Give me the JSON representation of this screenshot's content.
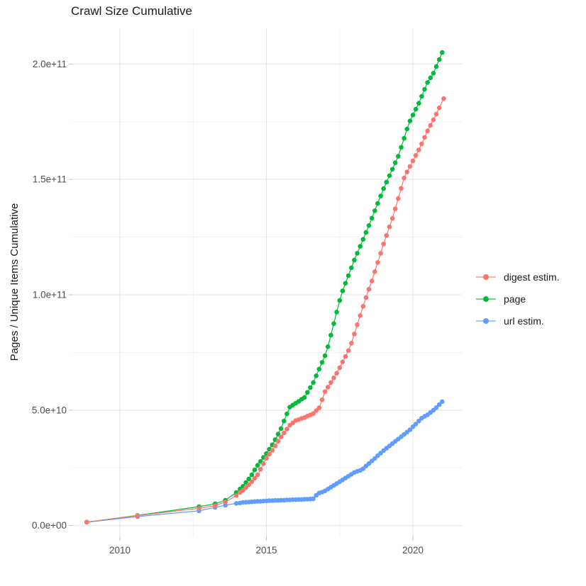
{
  "title": "Crawl Size Cumulative",
  "chart_data": {
    "type": "scatter",
    "title": "Crawl Size Cumulative",
    "xlabel": "",
    "ylabel": "Pages / Unique Items Cumulative",
    "values_unit": "1e9 (value 205 means 2.05e+11)",
    "x_axis": {
      "tick_values": [
        2010,
        2015,
        2020
      ],
      "tick_labels": [
        "2010",
        "2015",
        "2020"
      ],
      "minor_values": [
        2012.5,
        2017.5
      ],
      "range": [
        2008.4,
        2021.67
      ]
    },
    "y_axis": {
      "tick_values": [
        0,
        50,
        100,
        150,
        200
      ],
      "tick_labels": [
        "0.0e+00",
        "5.0e+10",
        "1.0e+11",
        "1.5e+11",
        "2.0e+11"
      ],
      "minor_values": [
        25,
        75,
        125,
        175
      ],
      "range": [
        -8.8,
        215.2
      ]
    },
    "grid": "on",
    "legend_position": "right",
    "colors": {
      "major_grid": "#e4e4e4",
      "minor_grid": "#f1f1f1",
      "tick": "#c6c6c6",
      "axis_text": "#4d4d4d"
    },
    "series": [
      {
        "name": "digest estim.",
        "color": "#F8766D",
        "points": [
          [
            2008.87,
            1.5
          ],
          [
            2010.6,
            4.3
          ],
          [
            2012.7,
            7.5
          ],
          [
            2013.25,
            8.6
          ],
          [
            2013.6,
            10.2
          ],
          [
            2013.97,
            13.0
          ],
          [
            2014.1,
            14.3
          ],
          [
            2014.2,
            15.3
          ],
          [
            2014.3,
            16.5
          ],
          [
            2014.4,
            17.7
          ],
          [
            2014.5,
            19.0
          ],
          [
            2014.6,
            20.5
          ],
          [
            2014.7,
            22.0
          ],
          [
            2014.8,
            24.4
          ],
          [
            2014.9,
            26.8
          ],
          [
            2015.0,
            29.2
          ],
          [
            2015.1,
            30.9
          ],
          [
            2015.2,
            32.6
          ],
          [
            2015.3,
            34.5
          ],
          [
            2015.4,
            36.5
          ],
          [
            2015.5,
            38.4
          ],
          [
            2015.6,
            40.1
          ],
          [
            2015.7,
            41.8
          ],
          [
            2015.8,
            43.5
          ],
          [
            2015.9,
            44.5
          ],
          [
            2016.0,
            45.5
          ],
          [
            2016.1,
            45.9
          ],
          [
            2016.2,
            46.4
          ],
          [
            2016.3,
            46.8
          ],
          [
            2016.4,
            47.4
          ],
          [
            2016.5,
            47.9
          ],
          [
            2016.6,
            48.5
          ],
          [
            2016.7,
            49.8
          ],
          [
            2016.8,
            51.0
          ],
          [
            2016.9,
            54.5
          ],
          [
            2017.0,
            58.0
          ],
          [
            2017.1,
            60.0
          ],
          [
            2017.2,
            62.0
          ],
          [
            2017.3,
            64.0
          ],
          [
            2017.4,
            66.0
          ],
          [
            2017.5,
            68.4
          ],
          [
            2017.6,
            70.9
          ],
          [
            2017.7,
            73.3
          ],
          [
            2017.8,
            75.8
          ],
          [
            2017.9,
            79.0
          ],
          [
            2018.0,
            83.0
          ],
          [
            2018.1,
            87.0
          ],
          [
            2018.2,
            91.0
          ],
          [
            2018.3,
            95.0
          ],
          [
            2018.4,
            98.8
          ],
          [
            2018.5,
            102.4
          ],
          [
            2018.6,
            106.0
          ],
          [
            2018.7,
            110.0
          ],
          [
            2018.8,
            114.0
          ],
          [
            2018.9,
            118.0
          ],
          [
            2019.0,
            122.0
          ],
          [
            2019.1,
            125.7
          ],
          [
            2019.2,
            129.4
          ],
          [
            2019.3,
            133.1
          ],
          [
            2019.4,
            137.2
          ],
          [
            2019.5,
            141.7
          ],
          [
            2019.6,
            146.1
          ],
          [
            2019.7,
            150.6
          ],
          [
            2019.8,
            153.2
          ],
          [
            2019.9,
            155.6
          ],
          [
            2020.0,
            158.0
          ],
          [
            2020.1,
            160.4
          ],
          [
            2020.2,
            162.8
          ],
          [
            2020.3,
            165.4
          ],
          [
            2020.4,
            168.2
          ],
          [
            2020.5,
            171.0
          ],
          [
            2020.6,
            173.4
          ],
          [
            2020.7,
            175.8
          ],
          [
            2020.8,
            178.3
          ],
          [
            2020.9,
            181.0
          ],
          [
            2021.05,
            185.0
          ]
        ]
      },
      {
        "name": "page",
        "color": "#00BA38",
        "points": [
          [
            2008.87,
            1.5
          ],
          [
            2010.6,
            4.4
          ],
          [
            2012.7,
            8.2
          ],
          [
            2013.25,
            9.4
          ],
          [
            2013.6,
            11.0
          ],
          [
            2013.97,
            14.3
          ],
          [
            2014.1,
            15.8
          ],
          [
            2014.2,
            17.0
          ],
          [
            2014.3,
            18.6
          ],
          [
            2014.4,
            20.2
          ],
          [
            2014.5,
            22.0
          ],
          [
            2014.6,
            24.1
          ],
          [
            2014.7,
            26.1
          ],
          [
            2014.8,
            27.8
          ],
          [
            2014.9,
            29.5
          ],
          [
            2015.0,
            31.2
          ],
          [
            2015.1,
            33.1
          ],
          [
            2015.2,
            35.0
          ],
          [
            2015.3,
            37.2
          ],
          [
            2015.4,
            39.6
          ],
          [
            2015.5,
            42.0
          ],
          [
            2015.6,
            45.3
          ],
          [
            2015.7,
            48.4
          ],
          [
            2015.8,
            51.3
          ],
          [
            2015.9,
            52.2
          ],
          [
            2016.0,
            53.0
          ],
          [
            2016.1,
            53.8
          ],
          [
            2016.2,
            54.7
          ],
          [
            2016.3,
            55.5
          ],
          [
            2016.4,
            57.7
          ],
          [
            2016.5,
            59.8
          ],
          [
            2016.6,
            62.0
          ],
          [
            2016.7,
            64.9
          ],
          [
            2016.8,
            67.8
          ],
          [
            2016.9,
            70.7
          ],
          [
            2017.0,
            73.6
          ],
          [
            2017.1,
            77.5
          ],
          [
            2017.2,
            82.5
          ],
          [
            2017.3,
            87.5
          ],
          [
            2017.4,
            92.5
          ],
          [
            2017.5,
            97.5
          ],
          [
            2017.6,
            101.7
          ],
          [
            2017.7,
            105.0
          ],
          [
            2017.8,
            108.3
          ],
          [
            2017.9,
            111.7
          ],
          [
            2018.0,
            115.0
          ],
          [
            2018.1,
            118.0
          ],
          [
            2018.2,
            121.0
          ],
          [
            2018.3,
            124.0
          ],
          [
            2018.4,
            127.0
          ],
          [
            2018.5,
            130.0
          ],
          [
            2018.6,
            133.2
          ],
          [
            2018.7,
            136.4
          ],
          [
            2018.8,
            139.6
          ],
          [
            2018.9,
            142.8
          ],
          [
            2019.0,
            146.0
          ],
          [
            2019.1,
            148.8
          ],
          [
            2019.2,
            151.6
          ],
          [
            2019.3,
            154.4
          ],
          [
            2019.4,
            157.2
          ],
          [
            2019.5,
            160.0
          ],
          [
            2019.6,
            163.9
          ],
          [
            2019.7,
            167.8
          ],
          [
            2019.8,
            171.8
          ],
          [
            2019.9,
            175.3
          ],
          [
            2020.0,
            177.9
          ],
          [
            2020.1,
            180.4
          ],
          [
            2020.2,
            183.0
          ],
          [
            2020.3,
            186.0
          ],
          [
            2020.4,
            189.0
          ],
          [
            2020.5,
            192.0
          ],
          [
            2020.6,
            194.0
          ],
          [
            2020.7,
            196.0
          ],
          [
            2020.8,
            198.9
          ],
          [
            2020.9,
            201.9
          ],
          [
            2021.0,
            205.0
          ]
        ]
      },
      {
        "name": "url estim.",
        "color": "#619CFF",
        "points": [
          [
            2008.87,
            1.4
          ],
          [
            2010.6,
            3.9
          ],
          [
            2012.7,
            6.4
          ],
          [
            2013.25,
            7.9
          ],
          [
            2013.6,
            8.8
          ],
          [
            2013.97,
            9.6
          ],
          [
            2014.1,
            9.8
          ],
          [
            2014.2,
            10.0
          ],
          [
            2014.3,
            10.1
          ],
          [
            2014.4,
            10.2
          ],
          [
            2014.5,
            10.3
          ],
          [
            2014.6,
            10.4
          ],
          [
            2014.7,
            10.5
          ],
          [
            2014.8,
            10.5
          ],
          [
            2014.9,
            10.6
          ],
          [
            2015.0,
            10.7
          ],
          [
            2015.1,
            10.8
          ],
          [
            2015.2,
            10.8
          ],
          [
            2015.3,
            10.9
          ],
          [
            2015.4,
            10.9
          ],
          [
            2015.5,
            11.0
          ],
          [
            2015.6,
            11.0
          ],
          [
            2015.7,
            11.1
          ],
          [
            2015.8,
            11.1
          ],
          [
            2015.9,
            11.2
          ],
          [
            2016.0,
            11.2
          ],
          [
            2016.1,
            11.3
          ],
          [
            2016.2,
            11.3
          ],
          [
            2016.3,
            11.4
          ],
          [
            2016.4,
            11.4
          ],
          [
            2016.5,
            11.5
          ],
          [
            2016.6,
            11.6
          ],
          [
            2016.7,
            13.1
          ],
          [
            2016.8,
            14.1
          ],
          [
            2016.9,
            14.5
          ],
          [
            2017.0,
            15.0
          ],
          [
            2017.1,
            15.8
          ],
          [
            2017.2,
            16.6
          ],
          [
            2017.3,
            17.4
          ],
          [
            2017.4,
            18.2
          ],
          [
            2017.5,
            19.0
          ],
          [
            2017.6,
            19.8
          ],
          [
            2017.7,
            20.6
          ],
          [
            2017.8,
            21.4
          ],
          [
            2017.9,
            22.2
          ],
          [
            2018.0,
            23.0
          ],
          [
            2018.1,
            23.5
          ],
          [
            2018.2,
            23.9
          ],
          [
            2018.3,
            24.6
          ],
          [
            2018.4,
            25.8
          ],
          [
            2018.5,
            26.9
          ],
          [
            2018.6,
            28.0
          ],
          [
            2018.7,
            29.1
          ],
          [
            2018.8,
            30.3
          ],
          [
            2018.9,
            31.4
          ],
          [
            2019.0,
            32.5
          ],
          [
            2019.1,
            33.5
          ],
          [
            2019.2,
            34.5
          ],
          [
            2019.3,
            35.5
          ],
          [
            2019.4,
            36.5
          ],
          [
            2019.5,
            37.5
          ],
          [
            2019.6,
            38.5
          ],
          [
            2019.7,
            39.5
          ],
          [
            2019.8,
            40.5
          ],
          [
            2019.9,
            41.5
          ],
          [
            2020.0,
            42.8
          ],
          [
            2020.1,
            44.0
          ],
          [
            2020.2,
            45.3
          ],
          [
            2020.3,
            46.5
          ],
          [
            2020.4,
            47.3
          ],
          [
            2020.5,
            48.0
          ],
          [
            2020.6,
            49.0
          ],
          [
            2020.7,
            50.0
          ],
          [
            2020.8,
            51.1
          ],
          [
            2020.9,
            52.4
          ],
          [
            2021.0,
            53.7
          ]
        ]
      }
    ]
  },
  "legend": {
    "items": [
      {
        "label": "digest estim.",
        "color": "#F8766D"
      },
      {
        "label": "page",
        "color": "#00BA38"
      },
      {
        "label": "url estim.",
        "color": "#619CFF"
      }
    ]
  }
}
